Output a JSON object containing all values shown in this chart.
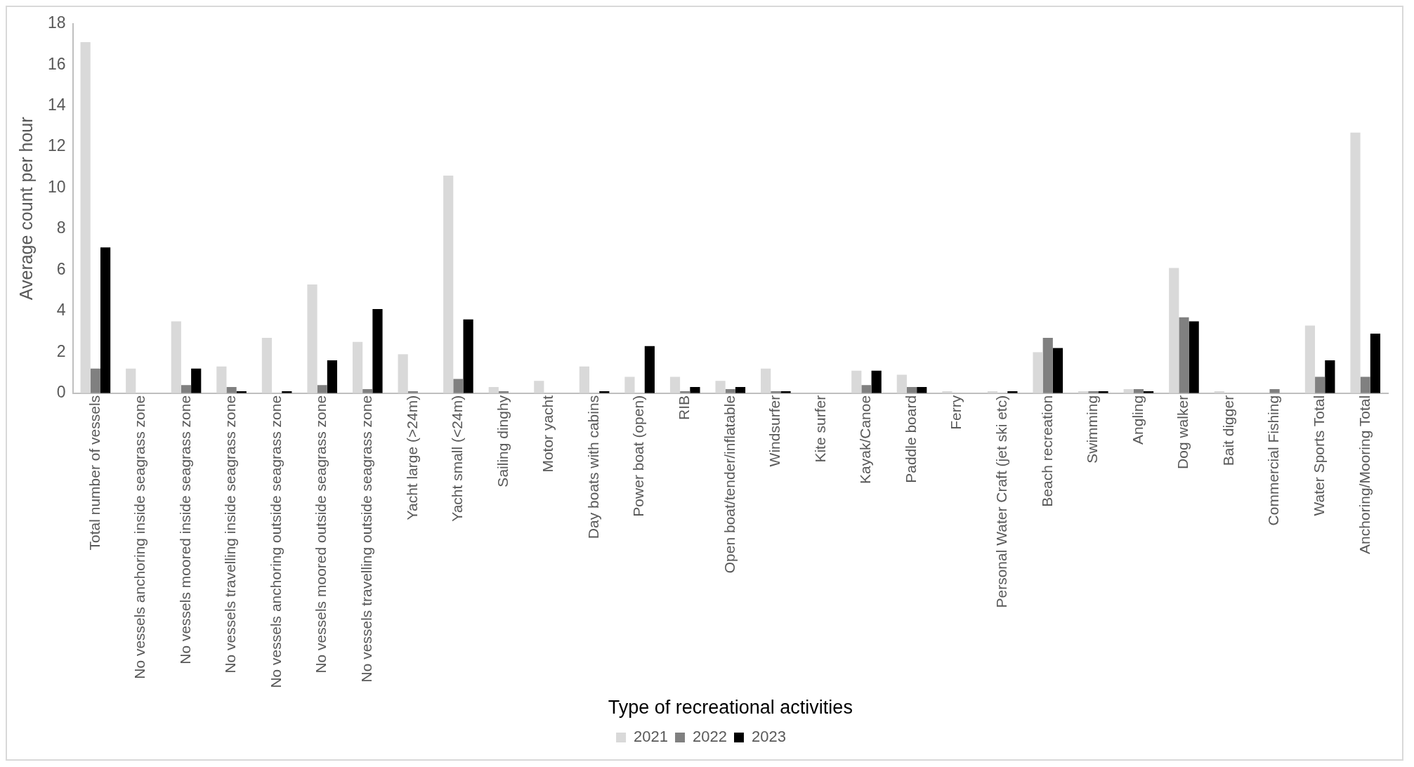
{
  "chart_data": {
    "type": "bar",
    "xlabel": "Type of recreational activities",
    "ylabel": "Average count per hour",
    "categories": [
      "Total number of vessels",
      "No vessels anchoring inside seagrass zone",
      "No vessels moored inside seagrass zone",
      "No vessels travelling inside seagrass zone",
      "No vessels anchoring outside seagrass zone",
      "No vessels moored outside seagrass zone",
      "No vessels travelling outside seagrass zone",
      "Yacht large (>24m)",
      "Yacht small (<24m)",
      "Sailing dinghy",
      "Motor yacht",
      "Day boats with cabins",
      "Power boat (open)",
      "RIB",
      "Open boat/tender/inflatable",
      "Windsurfer",
      "Kite surfer",
      "Kayak/Canoe",
      "Paddle board",
      "Ferry",
      "Personal Water Craft (jet ski etc)",
      "Beach recreation",
      "Swimming",
      "Angling",
      "Dog walker",
      "Bait digger",
      "Commercial Fishing",
      "Water Sports Total",
      "Anchoring/Mooring Total"
    ],
    "series": [
      {
        "name": "2021",
        "color": "#d9d9d9",
        "values": [
          17.1,
          1.2,
          3.5,
          1.3,
          2.7,
          5.3,
          2.5,
          1.9,
          10.6,
          0.3,
          0.6,
          1.3,
          0.8,
          0.8,
          0.6,
          1.2,
          0,
          1.1,
          0.9,
          0.1,
          0.1,
          2.0,
          0.1,
          0.2,
          6.1,
          0.1,
          0,
          3.3,
          12.7
        ]
      },
      {
        "name": "2022",
        "color": "#808080",
        "values": [
          1.2,
          0,
          0.4,
          0.3,
          0,
          0.4,
          0.2,
          0.1,
          0.7,
          0.1,
          0,
          0,
          0,
          0.1,
          0.2,
          0.1,
          0,
          0.4,
          0.3,
          0,
          0,
          2.7,
          0.1,
          0.2,
          3.7,
          0,
          0.2,
          0.8,
          0.8
        ]
      },
      {
        "name": "2023",
        "color": "#000000",
        "values": [
          7.1,
          0,
          1.2,
          0.1,
          0.1,
          1.6,
          4.1,
          0,
          3.6,
          0,
          0,
          0.1,
          2.3,
          0.3,
          0.3,
          0.1,
          0,
          1.1,
          0.3,
          0,
          0.1,
          2.2,
          0.1,
          0.1,
          3.5,
          0,
          0,
          1.6,
          2.9
        ]
      }
    ],
    "ylim": [
      0,
      18
    ],
    "yticks": [
      0,
      2,
      4,
      6,
      8,
      10,
      12,
      14,
      16,
      18
    ],
    "grid": false,
    "legend": "bottom"
  }
}
